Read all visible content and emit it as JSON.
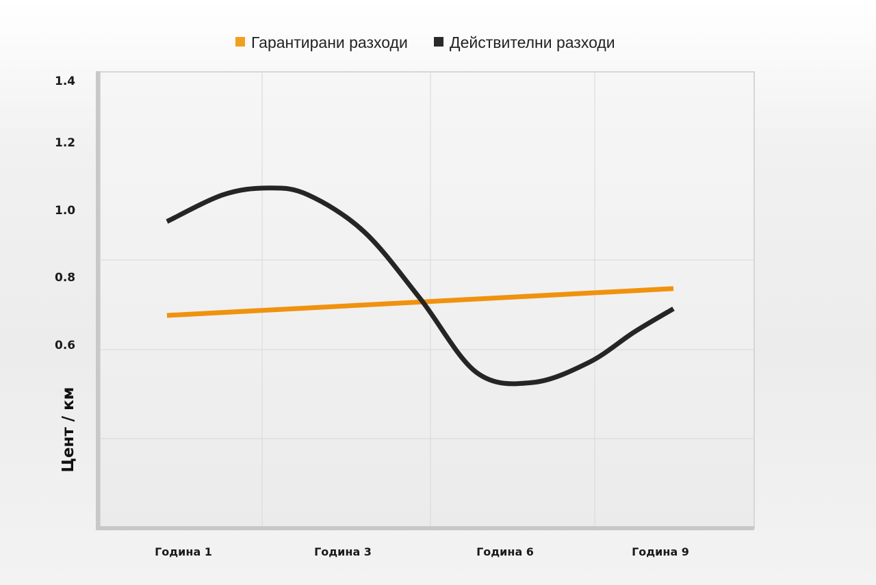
{
  "chart_data": {
    "type": "line",
    "title": "",
    "xlabel": "",
    "ylabel": "Цент / км",
    "categories": [
      "Година 1",
      "Година 3",
      "Година 6",
      "Година 9"
    ],
    "x_range": [
      0,
      10
    ],
    "yticks": [
      {
        "value": 1.4,
        "label": "1.4"
      },
      {
        "value": 1.2,
        "label": "1.2"
      },
      {
        "value": 1.0,
        "label": "1.0"
      },
      {
        "value": 0.8,
        "label": "0.8"
      },
      {
        "value": 0.6,
        "label": "0.6"
      }
    ],
    "ylim": [
      0.2,
      1.55
    ],
    "grid": true,
    "legend_position": "top-center",
    "series": [
      {
        "name": "Гарантирани разходи",
        "color": "#f0920e",
        "x": [
          1,
          10
        ],
        "values": [
          0.7,
          0.78
        ]
      },
      {
        "name": "Действителни разходи",
        "color": "#252525",
        "x": [
          1,
          2,
          2.8,
          3.5,
          4.5,
          5.5,
          6.5,
          7.5,
          8.5,
          9.3,
          10
        ],
        "values": [
          0.98,
          1.06,
          1.08,
          1.06,
          0.95,
          0.75,
          0.53,
          0.5,
          0.56,
          0.65,
          0.72
        ]
      }
    ]
  }
}
